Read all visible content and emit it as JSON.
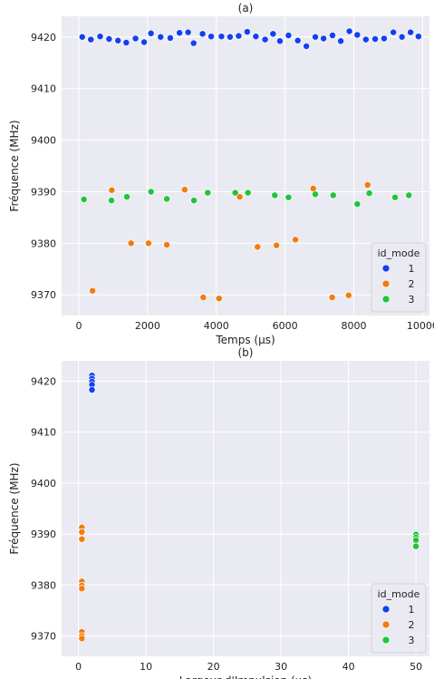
{
  "chart_data": [
    {
      "type": "scatter",
      "title": "(a)",
      "xlabel": "Temps (μs)",
      "ylabel": "Fréquence (MHz)",
      "xlim": [
        -500,
        10200
      ],
      "ylim": [
        9366,
        9424
      ],
      "xticks": [
        0,
        2000,
        4000,
        6000,
        8000,
        10000
      ],
      "yticks": [
        9370,
        9380,
        9390,
        9400,
        9410,
        9420
      ],
      "grid": true,
      "legend": {
        "title": "id_mode",
        "placement": "lower-right",
        "entries": [
          "1",
          "2",
          "3"
        ]
      },
      "series": [
        {
          "name": "1",
          "color": "#1340f0",
          "points": [
            [
              100,
              9420.0
            ],
            [
              350,
              9419.5
            ],
            [
              620,
              9420.1
            ],
            [
              880,
              9419.6
            ],
            [
              1140,
              9419.3
            ],
            [
              1380,
              9418.9
            ],
            [
              1650,
              9419.7
            ],
            [
              1900,
              9419.0
            ],
            [
              2100,
              9420.7
            ],
            [
              2380,
              9420.0
            ],
            [
              2660,
              9419.8
            ],
            [
              2930,
              9420.8
            ],
            [
              3180,
              9420.9
            ],
            [
              3340,
              9418.8
            ],
            [
              3600,
              9420.6
            ],
            [
              3850,
              9420.1
            ],
            [
              4150,
              9420.1
            ],
            [
              4400,
              9420.0
            ],
            [
              4650,
              9420.2
            ],
            [
              4900,
              9421.0
            ],
            [
              5150,
              9420.1
            ],
            [
              5420,
              9419.5
            ],
            [
              5650,
              9420.6
            ],
            [
              5850,
              9419.2
            ],
            [
              6100,
              9420.3
            ],
            [
              6370,
              9419.3
            ],
            [
              6620,
              9418.2
            ],
            [
              6880,
              9420.0
            ],
            [
              7120,
              9419.7
            ],
            [
              7380,
              9420.3
            ],
            [
              7620,
              9419.2
            ],
            [
              7870,
              9421.1
            ],
            [
              8100,
              9420.4
            ],
            [
              8350,
              9419.5
            ],
            [
              8620,
              9419.6
            ],
            [
              8880,
              9419.7
            ],
            [
              9150,
              9420.9
            ],
            [
              9400,
              9420.0
            ],
            [
              9650,
              9420.9
            ],
            [
              9880,
              9420.1
            ]
          ]
        },
        {
          "name": "2",
          "color": "#f07d0e",
          "points": [
            [
              400,
              9370.8
            ],
            [
              960,
              9390.3
            ],
            [
              1520,
              9380.0
            ],
            [
              2030,
              9380.0
            ],
            [
              2560,
              9379.7
            ],
            [
              3080,
              9390.4
            ],
            [
              3620,
              9369.5
            ],
            [
              4080,
              9369.3
            ],
            [
              4680,
              9389.0
            ],
            [
              5200,
              9379.3
            ],
            [
              5750,
              9379.6
            ],
            [
              6300,
              9380.7
            ],
            [
              6820,
              9390.6
            ],
            [
              7370,
              9369.5
            ],
            [
              7850,
              9369.9
            ],
            [
              8400,
              9391.3
            ]
          ]
        },
        {
          "name": "3",
          "color": "#1ec53b",
          "points": [
            [
              150,
              9388.5
            ],
            [
              950,
              9388.3
            ],
            [
              1400,
              9389.0
            ],
            [
              2100,
              9390.0
            ],
            [
              2560,
              9388.6
            ],
            [
              3350,
              9388.3
            ],
            [
              3750,
              9389.8
            ],
            [
              4550,
              9389.8
            ],
            [
              4920,
              9389.8
            ],
            [
              5700,
              9389.3
            ],
            [
              6100,
              9388.9
            ],
            [
              6880,
              9389.5
            ],
            [
              7400,
              9389.3
            ],
            [
              8100,
              9387.6
            ],
            [
              8450,
              9389.7
            ],
            [
              9200,
              9388.9
            ],
            [
              9600,
              9389.3
            ]
          ]
        }
      ]
    },
    {
      "type": "scatter",
      "title": "(b)",
      "xlabel": "Largeur d'Impulsion (μs)",
      "ylabel": "Fréquence (MHz)",
      "xlim": [
        -2.5,
        52
      ],
      "ylim": [
        9366,
        9424
      ],
      "xticks": [
        0,
        10,
        20,
        30,
        40,
        50
      ],
      "yticks": [
        9370,
        9380,
        9390,
        9400,
        9410,
        9420
      ],
      "grid": true,
      "legend": {
        "title": "id_mode",
        "placement": "lower-right",
        "entries": [
          "1",
          "2",
          "3"
        ]
      },
      "series": [
        {
          "name": "1",
          "color": "#1340f0",
          "points": [
            [
              2,
              9421.1
            ],
            [
              2,
              9420.5
            ],
            [
              2,
              9419.9
            ],
            [
              2,
              9419.3
            ],
            [
              2,
              9418.3
            ]
          ]
        },
        {
          "name": "2",
          "color": "#f07d0e",
          "points": [
            [
              0.5,
              9391.3
            ],
            [
              0.5,
              9390.4
            ],
            [
              0.5,
              9389.0
            ],
            [
              0.5,
              9380.7
            ],
            [
              0.5,
              9379.9
            ],
            [
              0.5,
              9379.3
            ],
            [
              0.5,
              9370.8
            ],
            [
              0.5,
              9370.0
            ],
            [
              0.5,
              9369.5
            ]
          ]
        },
        {
          "name": "3",
          "color": "#1ec53b",
          "points": [
            [
              50,
              9389.9
            ],
            [
              50,
              9389.3
            ],
            [
              50,
              9388.8
            ],
            [
              50,
              9387.6
            ]
          ]
        }
      ]
    }
  ]
}
